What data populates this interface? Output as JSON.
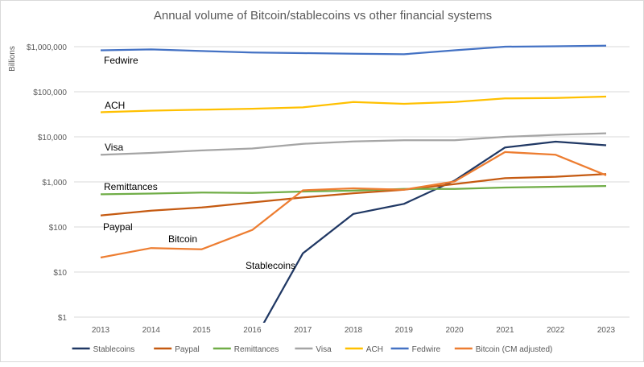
{
  "chart_data": {
    "type": "line",
    "title": "Annual volume of Bitcoin/stablecoins vs other financial systems",
    "xlabel": "",
    "ylabel": "Billions",
    "yscale": "log",
    "ylim": [
      1,
      1000000
    ],
    "y_ticks": [
      1,
      10,
      100,
      1000,
      10000,
      100000,
      1000000
    ],
    "y_tick_labels": [
      "$1",
      "$10",
      "$100",
      "$1,000",
      "$10,000",
      "$100,000",
      "$1,000,000"
    ],
    "x": [
      "2013",
      "2014",
      "2015",
      "2016",
      "2017",
      "2018",
      "2019",
      "2020",
      "2021",
      "2022",
      "2023"
    ],
    "grid": true,
    "legend_position": "bottom",
    "series": [
      {
        "name": "Stablecoins",
        "color": "#203864",
        "values": [
          null,
          null,
          null,
          0.26,
          26,
          195,
          325,
          1070,
          5800,
          7800,
          6500
        ]
      },
      {
        "name": "Paypal",
        "color": "#c55a11",
        "values": [
          180,
          230,
          270,
          350,
          450,
          560,
          670,
          890,
          1210,
          1300,
          1490
        ]
      },
      {
        "name": "Remittances",
        "color": "#70ad47",
        "values": [
          530,
          550,
          580,
          570,
          610,
          640,
          700,
          700,
          750,
          780,
          810
        ]
      },
      {
        "name": "Visa",
        "color": "#a5a5a5",
        "values": [
          4000,
          4400,
          5000,
          5500,
          7000,
          7900,
          8400,
          8400,
          10000,
          11100,
          12000
        ]
      },
      {
        "name": "ACH",
        "color": "#ffc000",
        "values": [
          35000,
          38000,
          40000,
          42000,
          45000,
          59000,
          54000,
          59000,
          71000,
          73000,
          78000
        ]
      },
      {
        "name": "Fedwire",
        "color": "#4472c4",
        "values": [
          830000,
          870000,
          800000,
          740000,
          720000,
          700000,
          680000,
          830000,
          1000000,
          1020000,
          1050000
        ]
      },
      {
        "name": "Bitcoin (CM adjusted)",
        "color": "#ed7d31",
        "values": [
          21,
          34,
          32,
          86,
          650,
          720,
          670,
          1020,
          4600,
          4000,
          1400
        ]
      }
    ],
    "annotations": [
      "Fedwire",
      "ACH",
      "Visa",
      "Remittances",
      "Paypal",
      "Bitcoin",
      "Stablecoins"
    ]
  }
}
